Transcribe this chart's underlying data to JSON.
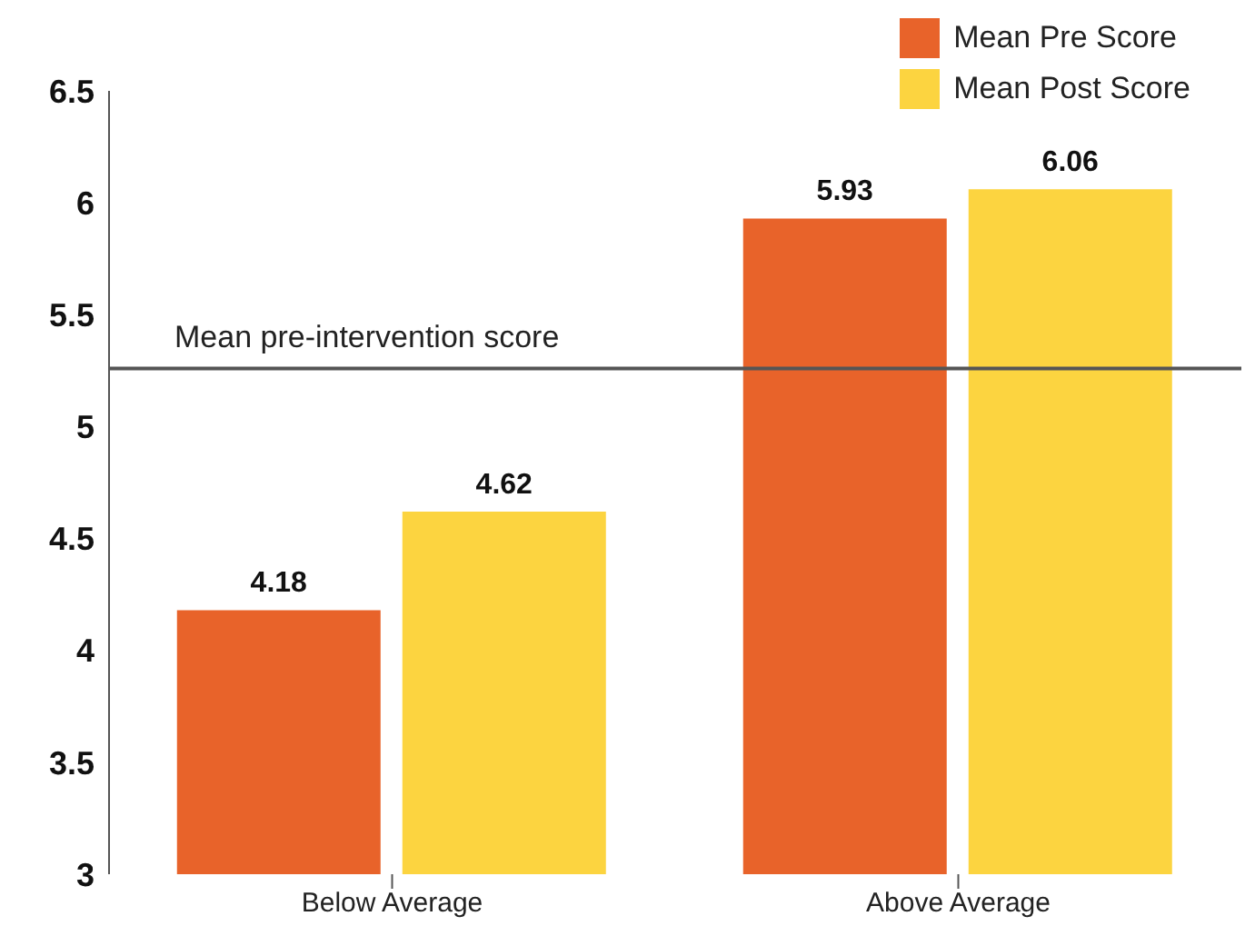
{
  "chart_data": {
    "type": "bar",
    "categories": [
      "Below Average",
      "Above Average"
    ],
    "series": [
      {
        "name": "Mean Pre Score",
        "color": "#e8632a",
        "values": [
          4.18,
          5.93
        ]
      },
      {
        "name": "Mean Post Score",
        "color": "#fcd440",
        "values": [
          4.62,
          6.06
        ]
      }
    ],
    "ylim": [
      3,
      6.5
    ],
    "yticks": [
      3,
      3.5,
      4,
      4.5,
      5,
      5.5,
      6,
      6.5
    ],
    "legend": "top right",
    "data_labels": true,
    "ref_lines": [
      {
        "axis": "y",
        "value": 5.26,
        "label": "Mean pre-intervention score",
        "color": "#555555"
      }
    ]
  }
}
